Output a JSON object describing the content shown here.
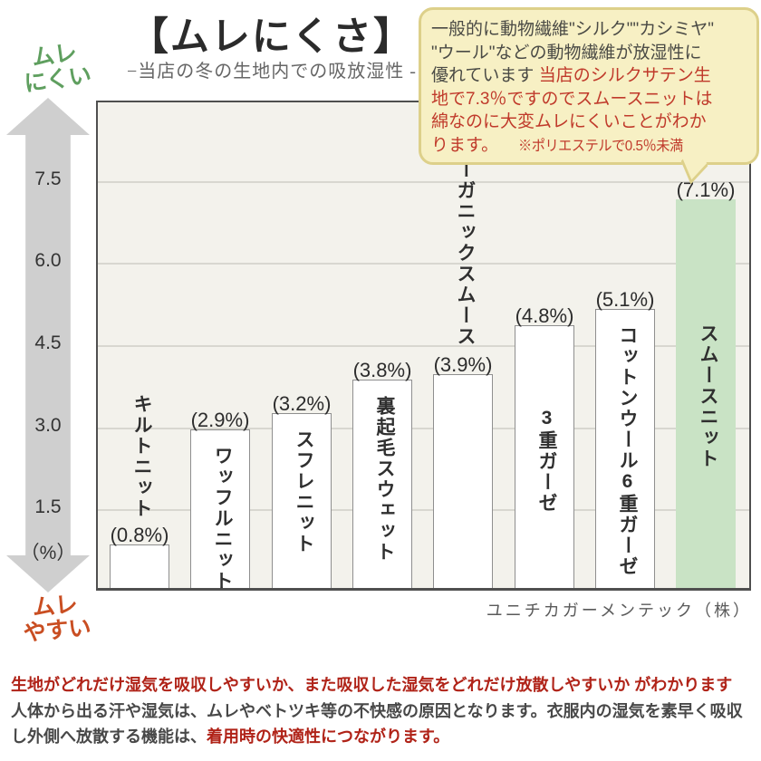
{
  "title": "【ムレにくさ】",
  "subtitle": "−当店の冬の生地内での吸放湿性 -",
  "axis_labels": {
    "top": [
      "ムレ",
      "にくい"
    ],
    "bottom": [
      "ムレ",
      "やすい"
    ]
  },
  "callout": {
    "lines": [
      {
        "segments": [
          {
            "text": "一般的に動物繊維\"シルク\"\"カシミヤ\"",
            "tone": "dark"
          }
        ]
      },
      {
        "segments": [
          {
            "text": "\"ウール\"などの動物繊維が放湿性に",
            "tone": "dark"
          }
        ]
      },
      {
        "segments": [
          {
            "text": "優れています ",
            "tone": "dark"
          },
          {
            "text": "当店のシルクサテン生",
            "tone": "red"
          }
        ]
      },
      {
        "segments": [
          {
            "text": "地で7.3％ですのでスムースニットは",
            "tone": "red"
          }
        ]
      },
      {
        "segments": [
          {
            "text": "綿なのに大変ムレにくいことがわか",
            "tone": "red"
          }
        ]
      },
      {
        "segments": [
          {
            "text": "ります。",
            "tone": "red"
          },
          {
            "text": "※ポリエステルで0.5％未満",
            "tone": "red",
            "note": true
          }
        ]
      }
    ]
  },
  "chart_data": {
    "type": "bar",
    "title": "【ムレにくさ】",
    "subtitle": "−当店の冬の生地内での吸放湿性 -",
    "categories": [
      "キルトニット",
      "ワッフルニット",
      "スフレニット",
      "裏起毛スウェット",
      "オーガニックスムース",
      "3重ガーゼ",
      "コットンウール6重ガーゼ",
      "スムースニット"
    ],
    "values": [
      0.8,
      2.9,
      3.2,
      3.8,
      3.9,
      4.8,
      5.1,
      7.1
    ],
    "value_labels": [
      "(0.8%)",
      "(2.9%)",
      "(3.2%)",
      "(3.8%)",
      "(3.9%)",
      "(4.8%)",
      "(5.1%)",
      "(7.1%)"
    ],
    "yticks": [
      1.5,
      3.0,
      4.5,
      6.0,
      7.5
    ],
    "ytick_labels": [
      "1.5",
      "3.0",
      "4.5",
      "6.0",
      "7.5"
    ],
    "unit_label": "（%）",
    "ylim": [
      0,
      8.95
    ],
    "grid": true,
    "legend": false,
    "highlight_index": 7,
    "axis_direction_labels": {
      "high": "ムレにくい",
      "low": "ムレやすい"
    },
    "source": "ユニチカガーメンテック（株）"
  },
  "source": "ユニチカガーメンテック（株）",
  "footer": {
    "lines": [
      {
        "segments": [
          {
            "text": "生地がどれだけ湿気を吸収しやすいか、また吸収した湿気をどれだけ放散しやすいか がわかります",
            "tone": "red"
          }
        ]
      },
      {
        "segments": [
          {
            "text": "人体から出る汗や湿気は、ムレやベトツキ等の不快感の原因となります。衣服内の湿気を素早く吸収",
            "tone": "gray"
          }
        ]
      },
      {
        "segments": [
          {
            "text": "し外側へ放散する機能は、",
            "tone": "gray"
          },
          {
            "text": "着用時の快適性につながります。",
            "tone": "red"
          }
        ]
      }
    ]
  },
  "colors": {
    "plot_background": "#f3f2ec",
    "gridline": "#d8d7d0",
    "plot_border": "#4f4f4f",
    "bar_fill": "#ffffff",
    "bar_border": "#8f8f8f",
    "highlight_bar": "#c9e3c5",
    "high_label_green": "#5f9f5f",
    "low_label_orange": "#c94e22",
    "emphasis_red": "#b02318",
    "body_gray": "#484848",
    "bubble_background": "#f7f0c4",
    "bubble_border": "#ddd08a",
    "bubble_red": "#c03a2b",
    "arrow_gray": "#cfcfcf"
  }
}
